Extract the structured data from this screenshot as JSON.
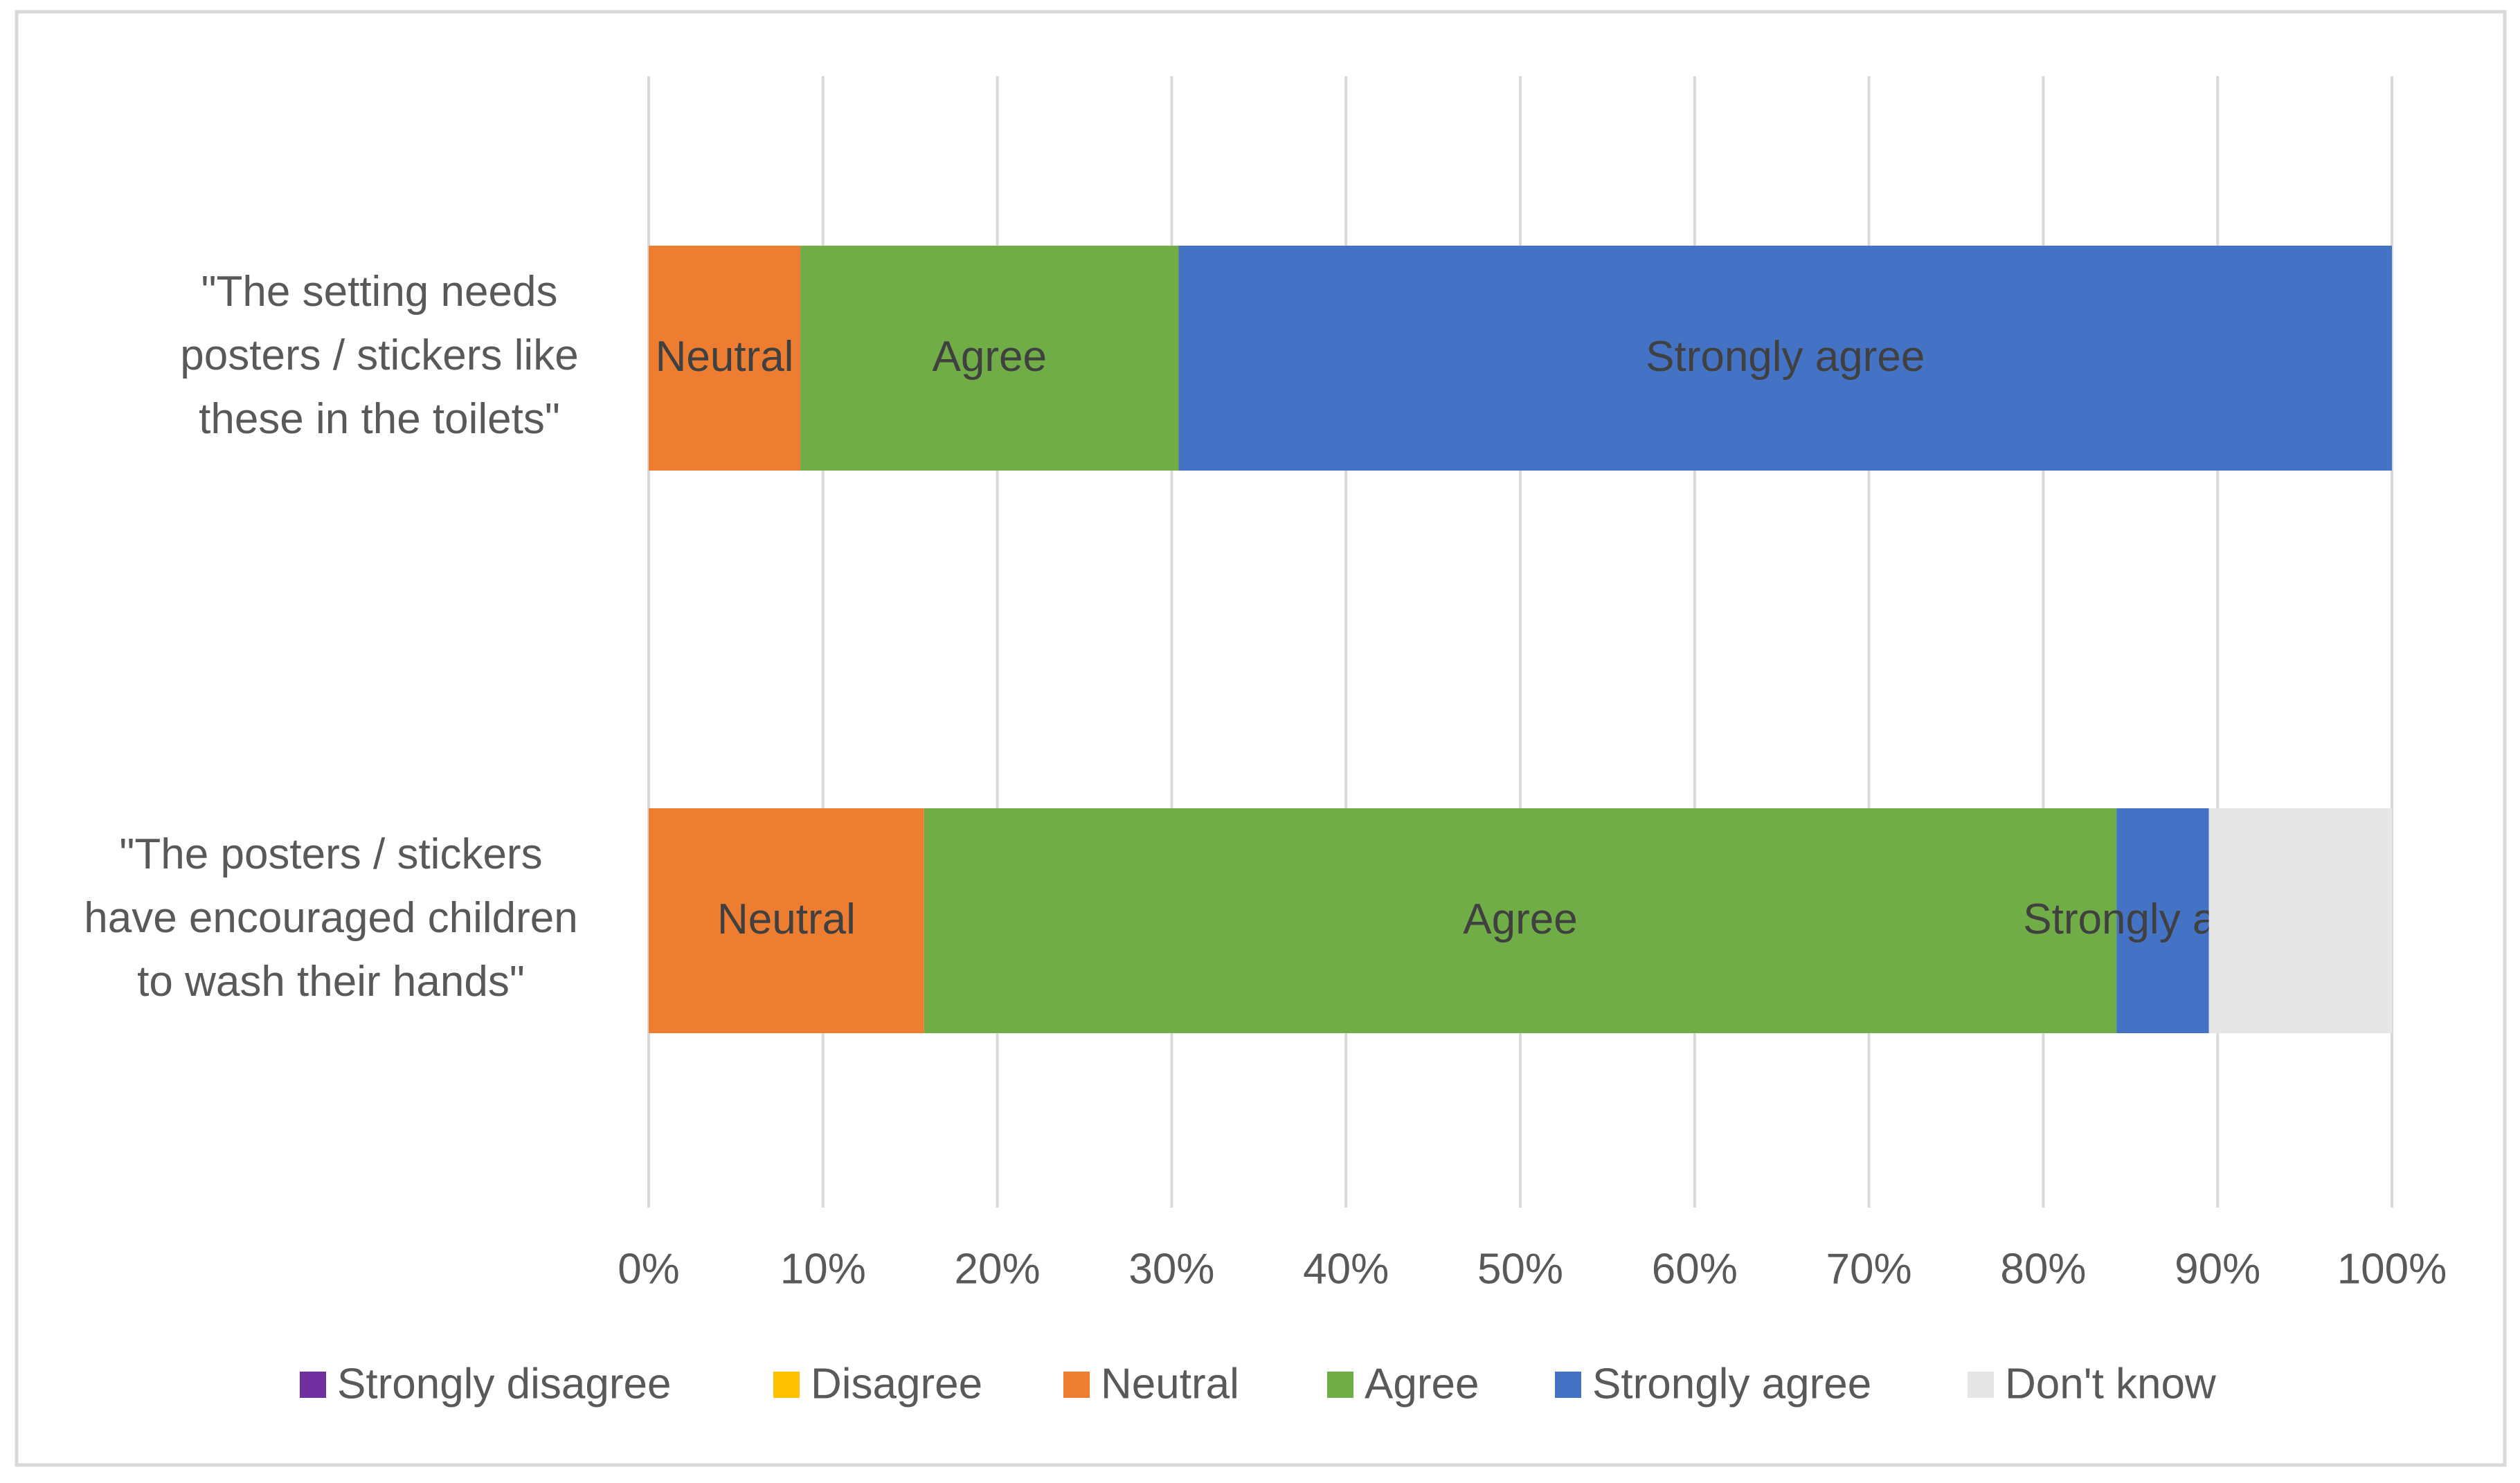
{
  "chart_data": {
    "type": "bar",
    "orientation": "horizontal",
    "stacked": true,
    "percent_stacked": true,
    "categories": [
      [
        "\"The setting needs",
        "posters / stickers like",
        "these in the toilets\""
      ],
      [
        "\"The posters / stickers",
        "have encouraged children",
        "to wash their hands\""
      ]
    ],
    "series": [
      {
        "name": "Strongly disagree",
        "color": "#7030A0",
        "values": [
          0,
          0
        ],
        "labels": [
          "",
          ""
        ]
      },
      {
        "name": "Disagree",
        "color": "#FFC000",
        "values": [
          0,
          0
        ],
        "labels": [
          "",
          ""
        ]
      },
      {
        "name": "Neutral",
        "color": "#ED7D31",
        "values": [
          8.7,
          15.8
        ],
        "labels": [
          "Neutral",
          "Neutral"
        ]
      },
      {
        "name": "Agree",
        "color": "#70AD47",
        "values": [
          21.7,
          68.4
        ],
        "labels": [
          "Agree",
          "Agree"
        ]
      },
      {
        "name": "Strongly agree",
        "color": "#4472C4",
        "values": [
          69.6,
          5.3
        ],
        "labels": [
          "Strongly agree",
          "Strongly agree"
        ]
      },
      {
        "name": "Don't know",
        "color": "#E7E6E6",
        "values": [
          0,
          10.5
        ],
        "labels": [
          "",
          ""
        ]
      }
    ],
    "xlim": [
      0,
      100
    ],
    "xticks": [
      0,
      10,
      20,
      30,
      40,
      50,
      60,
      70,
      80,
      90,
      100
    ],
    "xtick_labels": [
      "0%",
      "10%",
      "20%",
      "30%",
      "40%",
      "50%",
      "60%",
      "70%",
      "80%",
      "90%",
      "100%"
    ],
    "grid": true,
    "legend_position": "bottom",
    "title": "",
    "xlabel": "",
    "ylabel": ""
  }
}
